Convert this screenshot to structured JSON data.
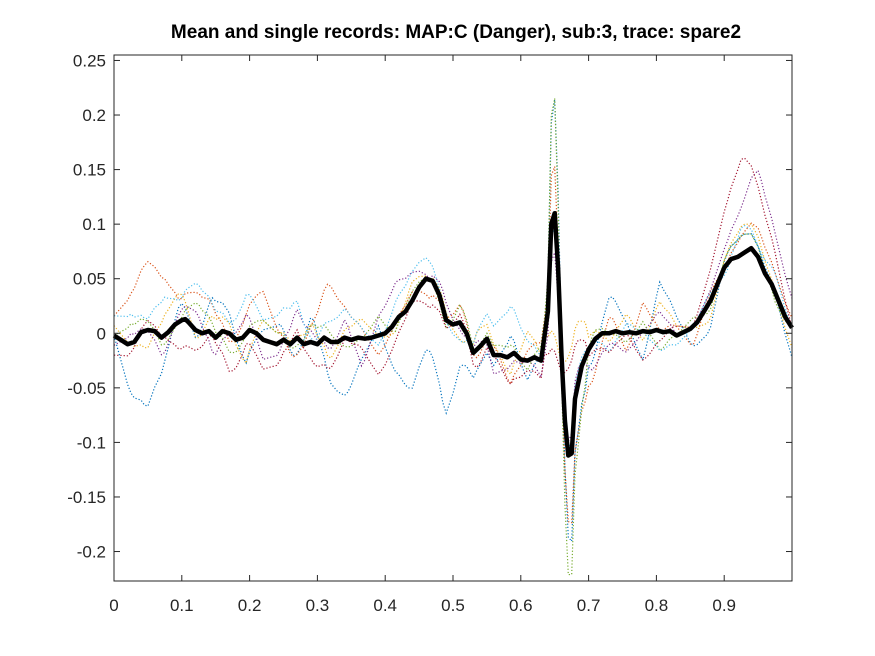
{
  "chart_data": {
    "type": "line",
    "title": "Mean and single records: MAP:C (Danger), sub:3, trace: spare2",
    "xlabel": "",
    "ylabel": "",
    "xlim": [
      0,
      1.0
    ],
    "ylim": [
      -0.227,
      0.255
    ],
    "x_ticks": [
      0,
      0.1,
      0.2,
      0.3,
      0.4,
      0.5,
      0.6,
      0.7,
      0.8,
      0.9
    ],
    "x_tick_labels": [
      "0",
      "0.1",
      "0.2",
      "0.3",
      "0.4",
      "0.5",
      "0.6",
      "0.7",
      "0.8",
      "0.9"
    ],
    "y_ticks": [
      0.25,
      0.2,
      0.15,
      0.1,
      0.05,
      0,
      -0.05,
      -0.1,
      -0.15,
      -0.2
    ],
    "y_tick_labels": [
      "0.25",
      "0.2",
      "0.15",
      "0.1",
      "0.05",
      "0",
      "-0.05",
      "-0.1",
      "-0.15",
      "-0.2"
    ],
    "grid": false,
    "legend": "none",
    "mean_series": {
      "color": "#000000",
      "style": "solid-thick",
      "x": [
        0,
        0.01,
        0.02,
        0.03,
        0.04,
        0.05,
        0.06,
        0.07,
        0.08,
        0.09,
        0.1,
        0.105,
        0.11,
        0.12,
        0.13,
        0.14,
        0.15,
        0.16,
        0.17,
        0.18,
        0.19,
        0.2,
        0.21,
        0.22,
        0.23,
        0.24,
        0.25,
        0.26,
        0.27,
        0.28,
        0.29,
        0.3,
        0.31,
        0.32,
        0.33,
        0.34,
        0.35,
        0.36,
        0.37,
        0.38,
        0.39,
        0.4,
        0.41,
        0.42,
        0.43,
        0.44,
        0.45,
        0.46,
        0.47,
        0.48,
        0.49,
        0.5,
        0.51,
        0.52,
        0.53,
        0.54,
        0.55,
        0.56,
        0.57,
        0.58,
        0.59,
        0.6,
        0.61,
        0.62,
        0.63,
        0.64,
        0.645,
        0.65,
        0.655,
        0.66,
        0.665,
        0.67,
        0.675,
        0.68,
        0.69,
        0.7,
        0.71,
        0.72,
        0.73,
        0.74,
        0.75,
        0.76,
        0.77,
        0.78,
        0.79,
        0.8,
        0.81,
        0.82,
        0.83,
        0.84,
        0.85,
        0.86,
        0.87,
        0.88,
        0.89,
        0.9,
        0.91,
        0.92,
        0.93,
        0.94,
        0.95,
        0.96,
        0.97,
        0.98,
        0.99,
        1.0
      ],
      "y": [
        -0.002,
        -0.006,
        -0.01,
        -0.008,
        0.001,
        0.003,
        0.002,
        -0.004,
        0.001,
        0.008,
        0.012,
        0.013,
        0.01,
        0.003,
        0.0,
        0.002,
        -0.004,
        0.002,
        0.0,
        -0.006,
        -0.004,
        0.003,
        0.0,
        -0.006,
        -0.008,
        -0.01,
        -0.006,
        -0.01,
        -0.004,
        -0.01,
        -0.008,
        -0.01,
        -0.004,
        -0.008,
        -0.008,
        -0.004,
        -0.006,
        -0.004,
        -0.005,
        -0.004,
        -0.002,
        0.0,
        0.006,
        0.015,
        0.02,
        0.03,
        0.042,
        0.05,
        0.048,
        0.035,
        0.012,
        0.008,
        0.01,
        0.0,
        -0.018,
        -0.012,
        -0.005,
        -0.02,
        -0.02,
        -0.022,
        -0.018,
        -0.024,
        -0.025,
        -0.022,
        -0.025,
        0.02,
        0.1,
        0.11,
        0.06,
        -0.02,
        -0.08,
        -0.112,
        -0.11,
        -0.06,
        -0.03,
        -0.015,
        -0.005,
        0.0,
        0.0,
        0.002,
        0.0,
        0.001,
        0.0,
        0.002,
        0.001,
        0.003,
        0.001,
        0.002,
        -0.002,
        0.001,
        0.004,
        0.01,
        0.02,
        0.03,
        0.045,
        0.06,
        0.068,
        0.07,
        0.074,
        0.078,
        0.07,
        0.055,
        0.045,
        0.03,
        0.015,
        0.005
      ]
    },
    "single_records": [
      {
        "name": "",
        "color": "#0072BD",
        "offsets": [
          0.0,
          -0.05,
          -0.08,
          -0.03,
          0.02,
          -0.01,
          0.04,
          0.02,
          -0.03,
          0.01,
          0.02,
          -0.02,
          0.03,
          -0.04,
          -0.06,
          -0.02,
          0.01,
          -0.05,
          -0.09,
          -0.07,
          -0.1,
          -0.04,
          -0.02,
          -0.01,
          0.02,
          -0.02,
          0.01,
          0.03,
          -0.01,
          -0.02,
          0.04,
          0.01,
          -0.03,
          0.05,
          0.02,
          -0.02,
          -0.03,
          0.01,
          0.02,
          0.01,
          0.0,
          -0.03
        ]
      },
      {
        "name": "",
        "color": "#D95319",
        "offsets": [
          0.02,
          0.05,
          0.07,
          0.06,
          0.02,
          0.04,
          0.03,
          -0.01,
          0.02,
          0.05,
          0.01,
          -0.02,
          0.02,
          0.06,
          0.03,
          0.01,
          -0.02,
          0.0,
          0.01,
          -0.02,
          0.0,
          0.02,
          -0.01,
          0.01,
          -0.03,
          0.01,
          0.02,
          -0.01,
          -0.03,
          -0.04,
          0.02,
          -0.02,
          0.03,
          0.0,
          0.01,
          -0.02,
          0.01,
          0.0,
          0.02,
          0.03,
          0.02,
          0.01
        ]
      },
      {
        "name": "",
        "color": "#EDB120",
        "offsets": [
          0.01,
          0.0,
          -0.02,
          0.02,
          0.03,
          -0.01,
          0.02,
          0.01,
          -0.03,
          0.02,
          0.01,
          0.0,
          0.02,
          -0.02,
          0.01,
          0.02,
          0.0,
          -0.01,
          0.02,
          0.0,
          0.01,
          -0.02,
          0.02,
          0.01,
          -0.02,
          0.03,
          0.0,
          -0.03,
          0.02,
          0.01,
          -0.01,
          0.02,
          -0.01,
          0.03,
          0.01,
          0.0,
          -0.02,
          0.01,
          0.03,
          0.02,
          0.0,
          -0.02
        ]
      },
      {
        "name": "",
        "color": "#7E2F8E",
        "offsets": [
          -0.01,
          0.01,
          0.0,
          -0.02,
          0.01,
          0.02,
          -0.02,
          0.0,
          0.02,
          -0.02,
          -0.01,
          0.03,
          0.01,
          -0.01,
          0.02,
          -0.03,
          0.02,
          0.04,
          0.03,
          0.0,
          0.02,
          -0.01,
          0.01,
          -0.02,
          -0.01,
          0.0,
          -0.02,
          -0.02,
          0.01,
          -0.03,
          -0.01,
          -0.02,
          0.0,
          0.02,
          0.0,
          0.0,
          0.01,
          0.02,
          0.05,
          0.09,
          0.06,
          0.03
        ]
      },
      {
        "name": "",
        "color": "#77AC30",
        "offsets": [
          0.0,
          0.02,
          0.01,
          -0.01,
          0.0,
          0.03,
          0.01,
          -0.02,
          0.0,
          0.02,
          0.01,
          -0.01,
          0.02,
          0.01,
          -0.01,
          0.0,
          0.02,
          -0.01,
          0.01,
          0.0,
          -0.01,
          0.02,
          0.0,
          0.01,
          0.01,
          -0.01,
          0.02,
          0.0,
          -0.02,
          0.01,
          0.0,
          -0.01,
          0.01,
          -0.02,
          0.0,
          0.01,
          -0.01,
          0.01,
          0.02,
          0.01,
          -0.01,
          0.0
        ]
      },
      {
        "name": "",
        "color": "#4DBEEE",
        "offsets": [
          0.02,
          0.03,
          0.01,
          0.04,
          0.02,
          0.05,
          0.03,
          0.01,
          0.04,
          0.02,
          0.03,
          0.04,
          0.0,
          0.02,
          0.03,
          0.01,
          -0.01,
          0.02,
          0.03,
          0.02,
          0.0,
          -0.02,
          0.02,
          0.03,
          0.05,
          0.02,
          0.0,
          -0.01,
          0.01,
          0.0,
          -0.02,
          0.01,
          0.0,
          -0.02,
          -0.01,
          0.0,
          0.01,
          -0.01,
          0.03,
          0.01,
          0.02,
          0.0
        ]
      },
      {
        "name": "",
        "color": "#A2142F",
        "offsets": [
          -0.02,
          -0.01,
          0.01,
          0.0,
          -0.03,
          -0.02,
          0.0,
          -0.04,
          -0.01,
          -0.03,
          -0.02,
          0.01,
          -0.02,
          -0.03,
          0.0,
          -0.01,
          -0.04,
          -0.02,
          0.0,
          -0.03,
          -0.01,
          0.01,
          -0.02,
          0.0,
          -0.03,
          -0.01,
          -0.02,
          -0.04,
          0.0,
          -0.01,
          -0.02,
          0.0,
          -0.03,
          -0.01,
          0.01,
          0.0,
          0.03,
          0.06,
          0.1,
          0.07,
          0.04,
          0.0
        ]
      }
    ]
  }
}
